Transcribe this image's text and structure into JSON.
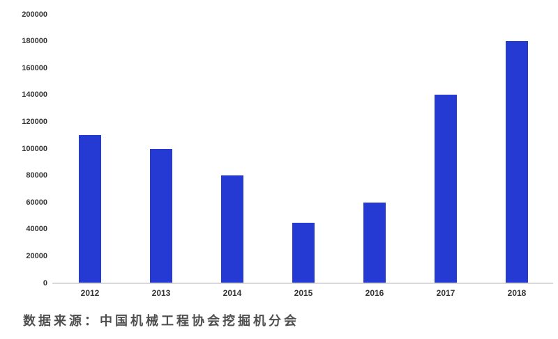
{
  "chart_data": {
    "type": "bar",
    "categories": [
      "2012",
      "2013",
      "2014",
      "2015",
      "2016",
      "2017",
      "2018"
    ],
    "values": [
      110000,
      100000,
      80000,
      45000,
      60000,
      140000,
      180000
    ],
    "title": "",
    "xlabel": "",
    "ylabel": "",
    "ylim": [
      0,
      200000
    ],
    "ytick_step": 20000,
    "ytick_labels": [
      "0",
      "20000",
      "40000",
      "60000",
      "80000",
      "100000",
      "120000",
      "140000",
      "160000",
      "180000",
      "200000"
    ],
    "grid": false,
    "legend": false,
    "bar_color": "#2539d3"
  },
  "colors": {
    "bar": "#2539d3",
    "axis_line": "#d9d9d9",
    "tick_text": "#333333",
    "source_text": "#4f4f4f"
  },
  "footer": {
    "source_note": "数据来源：中国机械工程协会挖掘机分会"
  }
}
